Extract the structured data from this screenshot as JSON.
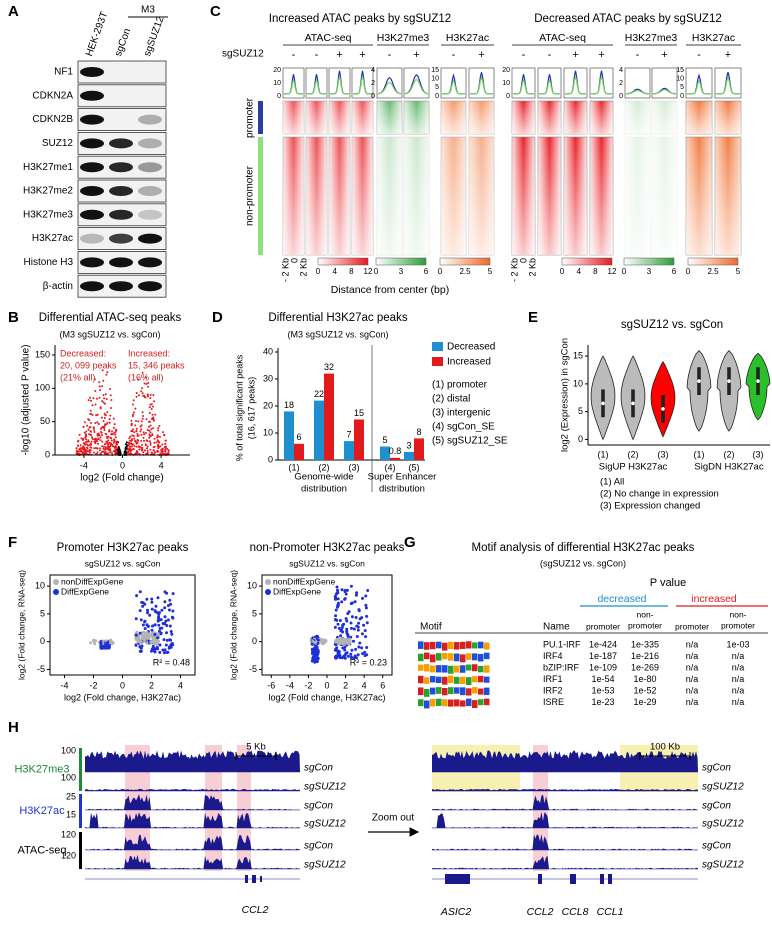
{
  "panel_a": {
    "label": "A",
    "group": "M3",
    "lanes": [
      "HEK-293T",
      "sgCon",
      "sgSUZ12"
    ],
    "blots": [
      "NF1",
      "CDKN2A",
      "CDKN2B",
      "SUZ12",
      "H3K27me1",
      "H3K27me2",
      "H3K27me3",
      "H3K27ac",
      "Histone H3",
      "β-actin"
    ]
  },
  "panel_b": {
    "label": "B",
    "title": "Differential ATAC-seq peaks",
    "subtitle": "(M3 sgSUZ12 vs. sgCon)",
    "decreased": [
      "Decreased:",
      "20, 099 peaks",
      "(21% all)"
    ],
    "increased": [
      "Increased:",
      "15, 346 peaks",
      "(16% all)"
    ],
    "ylabel": "-log10 (adjusted P value)",
    "xlabel": "log2 (Fold change)",
    "xlim": [
      -7,
      7
    ],
    "xticks": [
      -4,
      0,
      4
    ],
    "ylim": [
      0,
      165
    ],
    "yticks": [
      0,
      50,
      100,
      150
    ]
  },
  "panel_c": {
    "label": "C",
    "titles": [
      "Increased ATAC peaks by sgSUZ12",
      "Decreased ATAC peaks by sgSUZ12"
    ],
    "tracks": [
      "ATAC-seq",
      "H3K27me3",
      "H3K27ac"
    ],
    "condition": "sgSUZ12",
    "signs": [
      "-",
      "+"
    ],
    "regions": [
      "promoter",
      "non-promoter"
    ],
    "distance_ticks": [
      "- 2 Kb",
      "0",
      "2 Kb"
    ],
    "xlabel": "Distance from center (bp)",
    "profile_ticks": [
      [
        20,
        10,
        0
      ],
      [
        4,
        2,
        0
      ],
      [
        15,
        10,
        5,
        0
      ],
      [
        20,
        10,
        0
      ],
      [
        4,
        2,
        0
      ],
      [
        15,
        10,
        5,
        0
      ]
    ],
    "colorbar_ticks": [
      [
        0,
        4,
        8,
        12
      ],
      [
        0,
        3,
        6
      ],
      [
        0,
        2.5,
        5
      ]
    ]
  },
  "panel_d": {
    "label": "D",
    "title": "Differential H3K27ac peaks",
    "subtitle": "(M3 sgSUZ12 vs. sgCon)",
    "ylabel": [
      "% of total significant peaks",
      "(16, 617 peaks)"
    ],
    "categories": [
      "(1)",
      "(2)",
      "(3)",
      "(4)",
      "(5)"
    ],
    "series": [
      {
        "name": "Decreased",
        "color": "#1f8fd0",
        "values": [
          18,
          22,
          7,
          5,
          3
        ]
      },
      {
        "name": "Increased",
        "color": "#e31a1c",
        "values": [
          6,
          32,
          15,
          0.8,
          8
        ]
      }
    ],
    "ylim": [
      0,
      40
    ],
    "yticks": [
      0,
      10,
      20,
      30,
      40
    ],
    "groups": [
      [
        "Genome-wide",
        "distribution"
      ],
      [
        "Super Enhancer",
        "distribution"
      ]
    ],
    "key": [
      "(1) promoter",
      "(2) distal",
      "(3) intergenic",
      "(4) sgCon_SE",
      "(5) sgSUZ12_SE"
    ]
  },
  "panel_e": {
    "label": "E",
    "title": "sgSUZ12 vs. sgCon",
    "ylabel": "log2 (Expression) in sgCon",
    "ylim": [
      -1,
      17
    ],
    "yticks": [
      0,
      5,
      10,
      15
    ],
    "categories": [
      "(1)",
      "(2)",
      "(3)"
    ],
    "groups": [
      "SigUP H3K27ac",
      "SigDN H3K27ac"
    ],
    "key": [
      "(1) All",
      "(2) No change in expression",
      "(3) Expression changed"
    ]
  },
  "panel_f": {
    "label": "F",
    "plots": [
      {
        "title": "Promoter H3K27ac peaks",
        "subtitle": "sgSUZ12 vs. sgCon",
        "r2": "R² = 0.48",
        "xlim": [
          -5,
          5
        ],
        "xticks": [
          -4,
          -2,
          0,
          2,
          4
        ]
      },
      {
        "title": "non-Promoter H3K27ac peaks",
        "subtitle": "sgSUZ12 vs. sgCon",
        "r2": "R² = 0.23",
        "xlim": [
          -7,
          7
        ],
        "xticks": [
          -6,
          -4,
          -2,
          0,
          2,
          4,
          6
        ]
      }
    ],
    "legend": [
      "nonDiffExpGene",
      "DiffExpGene"
    ],
    "ylabel": "log2 (Fold change, RNA-seq)",
    "xlabel": "log2 (Fold change, H3K27ac)",
    "ylim": [
      -6,
      12
    ],
    "yticks": [
      -5,
      0,
      5,
      10
    ]
  },
  "panel_g": {
    "label": "G",
    "title": "Motif analysis of differential H3K27ac peaks",
    "subtitle": "(sgSUZ12 vs. sgCon)",
    "p_header": "P value",
    "directions": [
      "decreased",
      "increased"
    ],
    "col_motif": "Motif",
    "col_name": "Name",
    "col_promoter": "promoter",
    "col_nonpromoter": [
      "non-",
      "promoter"
    ],
    "rows": [
      [
        "PU.1-IRF",
        "1e-424",
        "1e-335",
        "n/a",
        "1e-03"
      ],
      [
        "IRF4",
        "1e-187",
        "1e-216",
        "n/a",
        "n/a"
      ],
      [
        "bZIP:IRF",
        "1e-109",
        "1e-269",
        "n/a",
        "n/a"
      ],
      [
        "IRF1",
        "1e-54",
        "1e-80",
        "n/a",
        "n/a"
      ],
      [
        "IRF2",
        "1e-53",
        "1e-52",
        "n/a",
        "n/a"
      ],
      [
        "ISRE",
        "1e-23",
        "1e-29",
        "n/a",
        "n/a"
      ]
    ]
  },
  "panel_h": {
    "label": "H",
    "marks": [
      "H3K27me3",
      "H3K27ac",
      "ATAC-seq"
    ],
    "samples": [
      "sgCon",
      "sgSUZ12"
    ],
    "scales": [
      100,
      100,
      25,
      15,
      120,
      120
    ],
    "left_scale": "5 Kb",
    "right_scale": "100 Kb",
    "zoom": "Zoom out",
    "left_genes": [
      "CCL2"
    ],
    "right_genes": [
      "ASIC2",
      "CCL2",
      "CCL8",
      "CCL1"
    ]
  }
}
